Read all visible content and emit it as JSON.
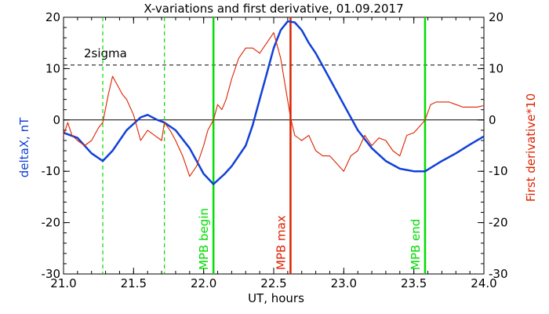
{
  "chart_data": {
    "type": "line",
    "title": "X-variations and first derivative, 01.09.2017",
    "xlabel": "UT, hours",
    "ylabel_left": "deltaX, nT",
    "ylabel_right": "First derivative*10",
    "xlim": [
      21.0,
      24.0
    ],
    "ylim": [
      -30,
      20
    ],
    "x_ticks": [
      "21.0",
      "21.5",
      "22.0",
      "22.5",
      "23.0",
      "23.5",
      "24.0"
    ],
    "y_ticks_left": [
      "20",
      "10",
      "0",
      "-10",
      "-20",
      "-30"
    ],
    "y_ticks_right": [
      "20",
      "10",
      "0",
      "-10",
      "-20",
      "-30"
    ],
    "threshold": {
      "label": "2sigma",
      "value": 10.7
    },
    "zero_line": 0,
    "vertical_markers": [
      {
        "x": 21.28,
        "style": "dashed",
        "color": "#00dd00",
        "label": ""
      },
      {
        "x": 21.72,
        "style": "dashed",
        "color": "#00dd00",
        "label": ""
      },
      {
        "x": 22.07,
        "style": "solid",
        "color": "#00dd00",
        "label": "MPB begin"
      },
      {
        "x": 22.62,
        "style": "solid",
        "color": "#dd2200",
        "label": "MPB max"
      },
      {
        "x": 23.58,
        "style": "solid",
        "color": "#00dd00",
        "label": "MPB end"
      }
    ],
    "series": [
      {
        "name": "deltaX, nT",
        "color": "#1040d8",
        "x": [
          21.0,
          21.1,
          21.2,
          21.28,
          21.35,
          21.45,
          21.55,
          21.6,
          21.67,
          21.72,
          21.8,
          21.9,
          22.0,
          22.07,
          22.15,
          22.2,
          22.3,
          22.35,
          22.4,
          22.45,
          22.5,
          22.55,
          22.6,
          22.65,
          22.7,
          22.75,
          22.8,
          22.9,
          23.0,
          23.1,
          23.2,
          23.3,
          23.4,
          23.5,
          23.58,
          23.7,
          23.8,
          23.9,
          24.0
        ],
        "y": [
          -2.5,
          -3.5,
          -6.5,
          -8,
          -6,
          -2,
          0.5,
          1,
          0,
          -0.5,
          -2,
          -5.5,
          -10.5,
          -12.5,
          -10.5,
          -9,
          -5,
          -1,
          4,
          9,
          14,
          17.5,
          19.2,
          19,
          17.5,
          15,
          13,
          8,
          3,
          -2,
          -5.5,
          -8,
          -9.5,
          -10,
          -10,
          -8,
          -6.5,
          -4.8,
          -3.2
        ]
      },
      {
        "name": "First derivative*10",
        "color": "#dd2200",
        "x": [
          21.0,
          21.03,
          21.06,
          21.1,
          21.15,
          21.2,
          21.25,
          21.28,
          21.32,
          21.35,
          21.38,
          21.42,
          21.45,
          21.5,
          21.55,
          21.6,
          21.65,
          21.7,
          21.72,
          21.76,
          21.8,
          21.85,
          21.9,
          21.95,
          22.0,
          22.03,
          22.07,
          22.1,
          22.13,
          22.16,
          22.2,
          22.25,
          22.3,
          22.35,
          22.4,
          22.45,
          22.5,
          22.55,
          22.58,
          22.62,
          22.65,
          22.7,
          22.75,
          22.8,
          22.85,
          22.9,
          22.95,
          23.0,
          23.05,
          23.1,
          23.15,
          23.2,
          23.25,
          23.3,
          23.35,
          23.4,
          23.45,
          23.5,
          23.55,
          23.58,
          23.62,
          23.66,
          23.7,
          23.75,
          23.8,
          23.85,
          23.9,
          23.95,
          24.0
        ],
        "y": [
          -3,
          -0.5,
          -3,
          -4,
          -5,
          -4,
          -1.5,
          -0.5,
          5,
          8.5,
          7,
          5,
          4,
          1,
          -4,
          -2,
          -3,
          -4,
          -0.5,
          -2,
          -4,
          -7,
          -11,
          -9,
          -5,
          -2,
          0,
          3,
          2,
          4,
          8,
          12,
          14,
          14,
          13,
          15,
          17,
          12,
          7,
          0.5,
          -3,
          -4,
          -3,
          -6,
          -7,
          -7,
          -8.5,
          -10,
          -7,
          -6,
          -3,
          -5,
          -3.5,
          -4,
          -6,
          -7,
          -3,
          -2.5,
          -1,
          0,
          3,
          3.5,
          3.5,
          3.5,
          3,
          2.5,
          2.5,
          2.5,
          2.8
        ]
      }
    ]
  }
}
